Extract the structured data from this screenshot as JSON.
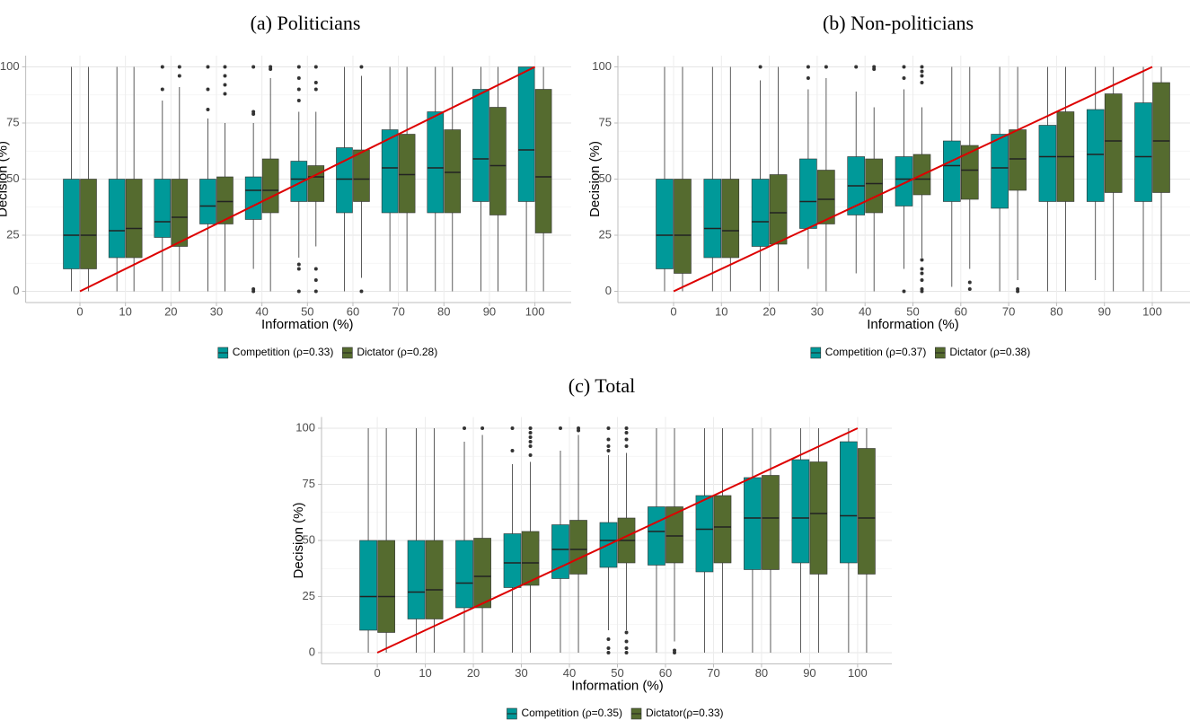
{
  "chart_data": [
    {
      "type": "box",
      "title": "(a) Politicians",
      "x_label": "Information (%)",
      "y_label": "Decision (%)",
      "categories": [
        0,
        10,
        20,
        30,
        40,
        50,
        60,
        70,
        80,
        90,
        100
      ],
      "ylim": [
        -5,
        105
      ],
      "yticks": [
        0,
        25,
        50,
        75,
        100
      ],
      "minor_yticks": [
        12.5,
        37.5,
        62.5,
        87.5
      ],
      "grid": true,
      "reference_line": {
        "x": [
          0,
          100
        ],
        "values": [
          0,
          100
        ],
        "color": "#dd0000"
      },
      "series": [
        {
          "name": "Competition (ρ=0.33)",
          "color": "#009999",
          "boxes": [
            {
              "whislo": 0,
              "q1": 10,
              "med": 25,
              "q3": 50,
              "whishi": 100,
              "outliers": []
            },
            {
              "whislo": 0,
              "q1": 15,
              "med": 27,
              "q3": 50,
              "whishi": 100,
              "outliers": []
            },
            {
              "whislo": 0,
              "q1": 24,
              "med": 31,
              "q3": 50,
              "whishi": 85,
              "outliers": [
                90,
                100
              ]
            },
            {
              "whislo": 0,
              "q1": 30,
              "med": 38,
              "q3": 50,
              "whishi": 77,
              "outliers": [
                81,
                90,
                100
              ]
            },
            {
              "whislo": 10,
              "q1": 32,
              "med": 45,
              "q3": 51,
              "whishi": 75,
              "outliers": [
                0,
                1,
                79,
                80,
                100
              ]
            },
            {
              "whislo": 15,
              "q1": 40,
              "med": 50,
              "q3": 58,
              "whishi": 80,
              "outliers": [
                0,
                10,
                12,
                85,
                90,
                95,
                100
              ]
            },
            {
              "whislo": 0,
              "q1": 35,
              "med": 50,
              "q3": 64,
              "whishi": 100,
              "outliers": []
            },
            {
              "whislo": 0,
              "q1": 35,
              "med": 55,
              "q3": 72,
              "whishi": 100,
              "outliers": []
            },
            {
              "whislo": 0,
              "q1": 35,
              "med": 55,
              "q3": 80,
              "whishi": 100,
              "outliers": []
            },
            {
              "whislo": 0,
              "q1": 40,
              "med": 59,
              "q3": 90,
              "whishi": 100,
              "outliers": []
            },
            {
              "whislo": 0,
              "q1": 40,
              "med": 63,
              "q3": 100,
              "whishi": 100,
              "outliers": []
            }
          ]
        },
        {
          "name": "Dictator (ρ=0.28)",
          "color": "#556b2f",
          "boxes": [
            {
              "whislo": 0,
              "q1": 10,
              "med": 25,
              "q3": 50,
              "whishi": 100,
              "outliers": []
            },
            {
              "whislo": 0,
              "q1": 15,
              "med": 28,
              "q3": 50,
              "whishi": 100,
              "outliers": []
            },
            {
              "whislo": 0,
              "q1": 20,
              "med": 33,
              "q3": 50,
              "whishi": 91,
              "outliers": [
                96,
                100
              ]
            },
            {
              "whislo": 0,
              "q1": 30,
              "med": 40,
              "q3": 51,
              "whishi": 75,
              "outliers": [
                88,
                92,
                96,
                100
              ]
            },
            {
              "whislo": 0,
              "q1": 35,
              "med": 45,
              "q3": 59,
              "whishi": 95,
              "outliers": [
                99,
                100
              ]
            },
            {
              "whislo": 20,
              "q1": 40,
              "med": 51,
              "q3": 56,
              "whishi": 80,
              "outliers": [
                0,
                5,
                10,
                90,
                93,
                100
              ]
            },
            {
              "whislo": 6,
              "q1": 40,
              "med": 50,
              "q3": 63,
              "whishi": 96,
              "outliers": [
                0,
                100
              ]
            },
            {
              "whislo": 0,
              "q1": 35,
              "med": 52,
              "q3": 70,
              "whishi": 100,
              "outliers": []
            },
            {
              "whislo": 0,
              "q1": 35,
              "med": 53,
              "q3": 72,
              "whishi": 100,
              "outliers": []
            },
            {
              "whislo": 0,
              "q1": 34,
              "med": 56,
              "q3": 82,
              "whishi": 100,
              "outliers": []
            },
            {
              "whislo": 0,
              "q1": 26,
              "med": 51,
              "q3": 90,
              "whishi": 100,
              "outliers": []
            }
          ]
        }
      ]
    },
    {
      "type": "box",
      "title": "(b) Non-politicians",
      "x_label": "Information (%)",
      "y_label": "Decision (%)",
      "categories": [
        0,
        10,
        20,
        30,
        40,
        50,
        60,
        70,
        80,
        90,
        100
      ],
      "ylim": [
        -5,
        105
      ],
      "yticks": [
        0,
        25,
        50,
        75,
        100
      ],
      "minor_yticks": [
        12.5,
        37.5,
        62.5,
        87.5
      ],
      "grid": true,
      "reference_line": {
        "x": [
          0,
          100
        ],
        "values": [
          0,
          100
        ],
        "color": "#dd0000"
      },
      "series": [
        {
          "name": "Competition (ρ=0.37)",
          "color": "#009999",
          "boxes": [
            {
              "whislo": 0,
              "q1": 10,
              "med": 25,
              "q3": 50,
              "whishi": 100,
              "outliers": []
            },
            {
              "whislo": 0,
              "q1": 15,
              "med": 28,
              "q3": 50,
              "whishi": 100,
              "outliers": []
            },
            {
              "whislo": 0,
              "q1": 20,
              "med": 31,
              "q3": 50,
              "whishi": 94,
              "outliers": [
                100
              ]
            },
            {
              "whislo": 10,
              "q1": 28,
              "med": 40,
              "q3": 59,
              "whishi": 90,
              "outliers": [
                95,
                100
              ]
            },
            {
              "whislo": 8,
              "q1": 34,
              "med": 47,
              "q3": 60,
              "whishi": 89,
              "outliers": [
                100
              ]
            },
            {
              "whislo": 10,
              "q1": 38,
              "med": 50,
              "q3": 60,
              "whishi": 90,
              "outliers": [
                0,
                95,
                100
              ]
            },
            {
              "whislo": 2,
              "q1": 40,
              "med": 56,
              "q3": 67,
              "whishi": 100,
              "outliers": []
            },
            {
              "whislo": 0,
              "q1": 37,
              "med": 55,
              "q3": 70,
              "whishi": 100,
              "outliers": []
            },
            {
              "whislo": 0,
              "q1": 40,
              "med": 60,
              "q3": 74,
              "whishi": 100,
              "outliers": []
            },
            {
              "whislo": 5,
              "q1": 40,
              "med": 61,
              "q3": 81,
              "whishi": 100,
              "outliers": []
            },
            {
              "whislo": 0,
              "q1": 40,
              "med": 60,
              "q3": 84,
              "whishi": 100,
              "outliers": []
            }
          ]
        },
        {
          "name": "Dictator (ρ=0.38)",
          "color": "#556b2f",
          "boxes": [
            {
              "whislo": 0,
              "q1": 8,
              "med": 25,
              "q3": 50,
              "whishi": 100,
              "outliers": []
            },
            {
              "whislo": 0,
              "q1": 15,
              "med": 27,
              "q3": 50,
              "whishi": 100,
              "outliers": []
            },
            {
              "whislo": 0,
              "q1": 21,
              "med": 35,
              "q3": 52,
              "whishi": 100,
              "outliers": []
            },
            {
              "whislo": 0,
              "q1": 30,
              "med": 41,
              "q3": 54,
              "whishi": 95,
              "outliers": [
                100
              ]
            },
            {
              "whislo": 0,
              "q1": 35,
              "med": 48,
              "q3": 59,
              "whishi": 82,
              "outliers": [
                99,
                100
              ]
            },
            {
              "whislo": 15,
              "q1": 43,
              "med": 50,
              "q3": 61,
              "whishi": 82,
              "outliers": [
                0,
                1,
                5,
                8,
                10,
                14,
                93,
                96,
                98,
                100
              ]
            },
            {
              "whislo": 10,
              "q1": 41,
              "med": 54,
              "q3": 65,
              "whishi": 100,
              "outliers": [
                1,
                4
              ]
            },
            {
              "whislo": 5,
              "q1": 45,
              "med": 59,
              "q3": 72,
              "whishi": 100,
              "outliers": [
                0,
                1
              ]
            },
            {
              "whislo": 0,
              "q1": 40,
              "med": 60,
              "q3": 80,
              "whishi": 100,
              "outliers": []
            },
            {
              "whislo": 0,
              "q1": 44,
              "med": 67,
              "q3": 88,
              "whishi": 100,
              "outliers": []
            },
            {
              "whislo": 0,
              "q1": 44,
              "med": 67,
              "q3": 93,
              "whishi": 100,
              "outliers": []
            }
          ]
        }
      ]
    },
    {
      "type": "box",
      "title": "(c) Total",
      "x_label": "Information (%)",
      "y_label": "Decision (%)",
      "categories": [
        0,
        10,
        20,
        30,
        40,
        50,
        60,
        70,
        80,
        90,
        100
      ],
      "ylim": [
        -5,
        105
      ],
      "yticks": [
        0,
        25,
        50,
        75,
        100
      ],
      "minor_yticks": [
        12.5,
        37.5,
        62.5,
        87.5
      ],
      "grid": true,
      "reference_line": {
        "x": [
          0,
          100
        ],
        "values": [
          0,
          100
        ],
        "color": "#dd0000"
      },
      "series": [
        {
          "name": "Competition (ρ=0.35)",
          "color": "#009999",
          "boxes": [
            {
              "whislo": 0,
              "q1": 10,
              "med": 25,
              "q3": 50,
              "whishi": 100,
              "outliers": []
            },
            {
              "whislo": 0,
              "q1": 15,
              "med": 27,
              "q3": 50,
              "whishi": 100,
              "outliers": []
            },
            {
              "whislo": 0,
              "q1": 20,
              "med": 31,
              "q3": 50,
              "whishi": 94,
              "outliers": [
                100
              ]
            },
            {
              "whislo": 0,
              "q1": 29,
              "med": 40,
              "q3": 53,
              "whishi": 84,
              "outliers": [
                90,
                100
              ]
            },
            {
              "whislo": 0,
              "q1": 33,
              "med": 46,
              "q3": 57,
              "whishi": 90,
              "outliers": [
                100
              ]
            },
            {
              "whislo": 10,
              "q1": 38,
              "med": 50,
              "q3": 58,
              "whishi": 88,
              "outliers": [
                0,
                2,
                6,
                90,
                92,
                95,
                100
              ]
            },
            {
              "whislo": 0,
              "q1": 39,
              "med": 54,
              "q3": 65,
              "whishi": 100,
              "outliers": []
            },
            {
              "whislo": 0,
              "q1": 36,
              "med": 55,
              "q3": 70,
              "whishi": 100,
              "outliers": []
            },
            {
              "whislo": 0,
              "q1": 37,
              "med": 60,
              "q3": 78,
              "whishi": 100,
              "outliers": []
            },
            {
              "whislo": 0,
              "q1": 40,
              "med": 60,
              "q3": 86,
              "whishi": 100,
              "outliers": []
            },
            {
              "whislo": 0,
              "q1": 40,
              "med": 61,
              "q3": 94,
              "whishi": 100,
              "outliers": []
            }
          ]
        },
        {
          "name": "Dictator(ρ=0.33)",
          "color": "#556b2f",
          "boxes": [
            {
              "whislo": 0,
              "q1": 9,
              "med": 25,
              "q3": 50,
              "whishi": 100,
              "outliers": []
            },
            {
              "whislo": 0,
              "q1": 15,
              "med": 28,
              "q3": 50,
              "whishi": 100,
              "outliers": []
            },
            {
              "whislo": 0,
              "q1": 20,
              "med": 34,
              "q3": 51,
              "whishi": 97,
              "outliers": [
                100
              ]
            },
            {
              "whislo": 0,
              "q1": 30,
              "med": 40,
              "q3": 54,
              "whishi": 85,
              "outliers": [
                88,
                92,
                94,
                96,
                98,
                100
              ]
            },
            {
              "whislo": 0,
              "q1": 35,
              "med": 46,
              "q3": 59,
              "whishi": 97,
              "outliers": [
                99,
                100
              ]
            },
            {
              "whislo": 10,
              "q1": 40,
              "med": 50,
              "q3": 60,
              "whishi": 89,
              "outliers": [
                0,
                2,
                5,
                9,
                92,
                95,
                98,
                100
              ]
            },
            {
              "whislo": 5,
              "q1": 40,
              "med": 52,
              "q3": 65,
              "whishi": 100,
              "outliers": [
                0,
                1
              ]
            },
            {
              "whislo": 0,
              "q1": 40,
              "med": 56,
              "q3": 70,
              "whishi": 100,
              "outliers": []
            },
            {
              "whislo": 0,
              "q1": 37,
              "med": 60,
              "q3": 79,
              "whishi": 100,
              "outliers": []
            },
            {
              "whislo": 0,
              "q1": 35,
              "med": 62,
              "q3": 85,
              "whishi": 100,
              "outliers": []
            },
            {
              "whislo": 0,
              "q1": 35,
              "med": 60,
              "q3": 91,
              "whishi": 100,
              "outliers": []
            }
          ]
        }
      ]
    }
  ]
}
